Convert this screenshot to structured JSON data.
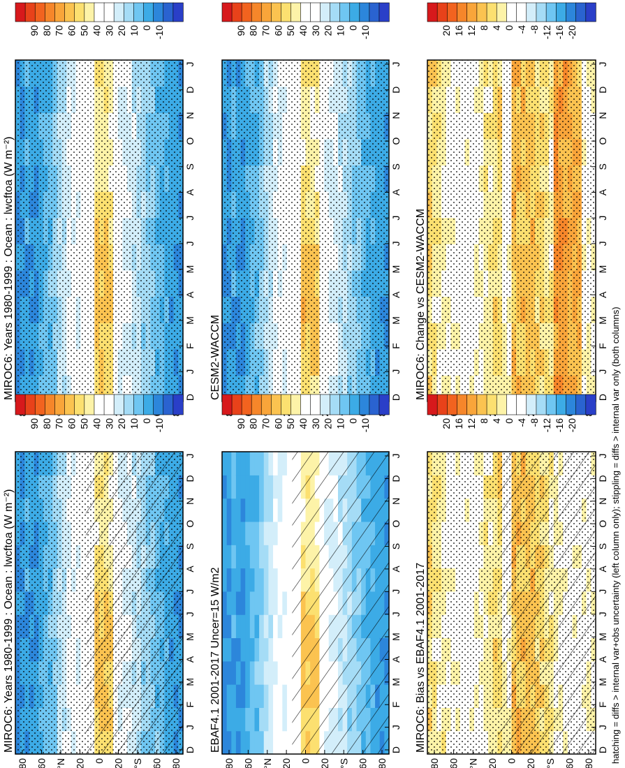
{
  "figure": {
    "caption": "hatching = diffs > internal var+obs uncertainty (left column only); stippling = diffs > internal var only (both columns)"
  },
  "chart_data": [
    {
      "type": "heatmap",
      "panel": "top-left",
      "title": "MIROC6: Years 1980-1999 : Ocean : lwcftoa (W m⁻²)",
      "x_ticks": [
        "D",
        "J",
        "F",
        "M",
        "A",
        "M",
        "J",
        "J",
        "A",
        "S",
        "O",
        "N",
        "D",
        "J"
      ],
      "y_ticks": [
        "80",
        "60",
        "°N",
        "20",
        "0",
        "20",
        "°S",
        "60",
        "80"
      ],
      "ylim": [
        -90,
        90
      ],
      "overlay": "stippling and hatching",
      "colorbar": {
        "ticks": [
          "90",
          "80",
          "70",
          "60",
          "50",
          "40",
          "30",
          "20",
          "10",
          "0",
          "-10"
        ],
        "colors": [
          "#d7191c",
          "#e8421a",
          "#f2631f",
          "#f6862a",
          "#f9a53a",
          "#fbc350",
          "#fce070",
          "#fdf3a8",
          "#ffffff",
          "#ffffff",
          "#d3eefa",
          "#a5dcf6",
          "#6fc6f2",
          "#3cabe6",
          "#2c86db",
          "#2a63d0",
          "#2a3fc8"
        ]
      }
    },
    {
      "type": "heatmap",
      "panel": "top-right",
      "title": "MIROC6: Years 1980-1999 : Ocean : lwcftoa (W m⁻²)",
      "x_ticks": [
        "D",
        "J",
        "F",
        "M",
        "A",
        "M",
        "J",
        "J",
        "A",
        "S",
        "O",
        "N",
        "D",
        "J"
      ],
      "y_ticks": [
        "80",
        "60",
        "°N",
        "20",
        "0",
        "20",
        "°S",
        "60",
        "80"
      ],
      "ylim": [
        -90,
        90
      ],
      "overlay": "stippling",
      "colorbar": {
        "ticks": [
          "90",
          "80",
          "70",
          "60",
          "50",
          "40",
          "30",
          "20",
          "10",
          "0",
          "-10"
        ],
        "colors": [
          "#d7191c",
          "#e8421a",
          "#f2631f",
          "#f6862a",
          "#f9a53a",
          "#fbc350",
          "#fce070",
          "#fdf3a8",
          "#ffffff",
          "#ffffff",
          "#d3eefa",
          "#a5dcf6",
          "#6fc6f2",
          "#3cabe6",
          "#2c86db",
          "#2a63d0",
          "#2a3fc8"
        ]
      }
    },
    {
      "type": "heatmap",
      "panel": "middle-left",
      "title": "EBAF4.1 2001-2017 Uncer=15 W/m2",
      "x_ticks": [
        "D",
        "J",
        "F",
        "M",
        "A",
        "M",
        "J",
        "J",
        "A",
        "S",
        "O",
        "N",
        "D",
        "J"
      ],
      "y_ticks": [
        "80",
        "60",
        "°N",
        "20",
        "0",
        "20",
        "°S",
        "60",
        "80"
      ],
      "ylim": [
        -90,
        90
      ],
      "overlay": "hatching",
      "colorbar": {
        "ticks": [
          "90",
          "80",
          "70",
          "60",
          "50",
          "40",
          "30",
          "20",
          "10",
          "0",
          "-10"
        ],
        "colors": [
          "#d7191c",
          "#e8421a",
          "#f2631f",
          "#f6862a",
          "#f9a53a",
          "#fbc350",
          "#fce070",
          "#fdf3a8",
          "#ffffff",
          "#ffffff",
          "#d3eefa",
          "#a5dcf6",
          "#6fc6f2",
          "#3cabe6",
          "#2c86db",
          "#2a63d0",
          "#2a3fc8"
        ]
      }
    },
    {
      "type": "heatmap",
      "panel": "middle-right",
      "title": "CESM2-WACCM",
      "x_ticks": [
        "D",
        "J",
        "F",
        "M",
        "A",
        "M",
        "J",
        "J",
        "A",
        "S",
        "O",
        "N",
        "D",
        "J"
      ],
      "y_ticks": [
        "80",
        "60",
        "°N",
        "20",
        "0",
        "20",
        "°S",
        "60",
        "80"
      ],
      "ylim": [
        -90,
        90
      ],
      "overlay": "stippling",
      "colorbar": {
        "ticks": [
          "90",
          "80",
          "70",
          "60",
          "50",
          "40",
          "30",
          "20",
          "10",
          "0",
          "-10"
        ],
        "colors": [
          "#d7191c",
          "#e8421a",
          "#f2631f",
          "#f6862a",
          "#f9a53a",
          "#fbc350",
          "#fce070",
          "#fdf3a8",
          "#ffffff",
          "#ffffff",
          "#d3eefa",
          "#a5dcf6",
          "#6fc6f2",
          "#3cabe6",
          "#2c86db",
          "#2a63d0",
          "#2a3fc8"
        ]
      }
    },
    {
      "type": "heatmap",
      "panel": "bottom-left",
      "title": "MIROC6: Bias vs EBAF4.1 2001-2017",
      "x_ticks": [
        "D",
        "J",
        "F",
        "M",
        "A",
        "M",
        "J",
        "J",
        "A",
        "S",
        "O",
        "N",
        "D",
        "J"
      ],
      "y_ticks": [
        "80",
        "60",
        "°N",
        "20",
        "0",
        "20",
        "°S",
        "60",
        "80"
      ],
      "ylim": [
        -90,
        90
      ],
      "overlay": "stippling and hatching",
      "colorbar": {
        "ticks": [
          "20",
          "16",
          "12",
          "8",
          "4",
          "0",
          "-4",
          "-8",
          "-12",
          "-16",
          "-20"
        ],
        "colors": [
          "#d7191c",
          "#e8421a",
          "#f2631f",
          "#f6862a",
          "#f9a53a",
          "#fbc350",
          "#fce070",
          "#fdf3a8",
          "#ffffff",
          "#ffffff",
          "#d3eefa",
          "#a5dcf6",
          "#6fc6f2",
          "#3cabe6",
          "#2c86db",
          "#2a63d0",
          "#2a3fc8"
        ]
      }
    },
    {
      "type": "heatmap",
      "panel": "bottom-right",
      "title": "MIROC6: Change vs CESM2-WACCM",
      "x_ticks": [
        "D",
        "J",
        "F",
        "M",
        "A",
        "M",
        "J",
        "J",
        "A",
        "S",
        "O",
        "N",
        "D",
        "J"
      ],
      "y_ticks": [
        "80",
        "60",
        "°N",
        "20",
        "0",
        "20",
        "°S",
        "60",
        "80"
      ],
      "ylim": [
        -90,
        90
      ],
      "overlay": "stippling",
      "colorbar": {
        "ticks": [
          "20",
          "16",
          "12",
          "8",
          "4",
          "0",
          "-4",
          "-8",
          "-12",
          "-16",
          "-20"
        ],
        "colors": [
          "#d7191c",
          "#e8421a",
          "#f2631f",
          "#f6862a",
          "#f9a53a",
          "#fbc350",
          "#fce070",
          "#fdf3a8",
          "#ffffff",
          "#ffffff",
          "#d3eefa",
          "#a5dcf6",
          "#6fc6f2",
          "#3cabe6",
          "#2c86db",
          "#2a63d0",
          "#2a3fc8"
        ]
      }
    }
  ]
}
